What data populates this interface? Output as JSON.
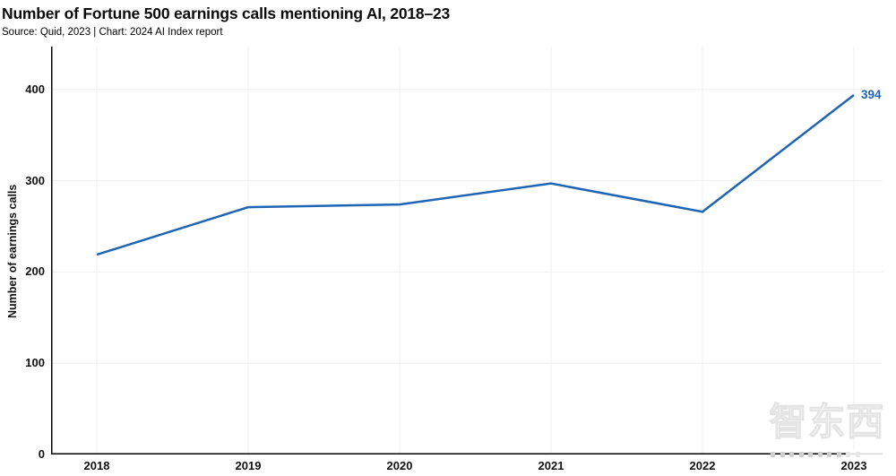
{
  "header": {
    "title": "Number of Fortune 500 earnings calls mentioning AI, 2018–23",
    "subtitle": "Source: Quid, 2023 | Chart: 2024 AI Index report"
  },
  "chart_data": {
    "type": "line",
    "title": "Number of Fortune 500 earnings calls mentioning AI, 2018–23",
    "categories": [
      "2018",
      "2019",
      "2020",
      "2021",
      "2022",
      "2023"
    ],
    "series": [
      {
        "name": "Fortune 500 earnings calls mentioning AI",
        "values": [
          219,
          271,
          274,
          297,
          266,
          394
        ]
      }
    ],
    "end_label": "394",
    "xlabel": "",
    "ylabel": "Number of earnings calls",
    "yticks": [
      0,
      100,
      200,
      300,
      400
    ],
    "ylim": [
      0,
      447
    ],
    "grid": true,
    "legend": "none",
    "line_color": "#2065b4",
    "grid_color": "#efefef",
    "axis_color": "#000000"
  },
  "watermark": {
    "text": "智东西"
  }
}
